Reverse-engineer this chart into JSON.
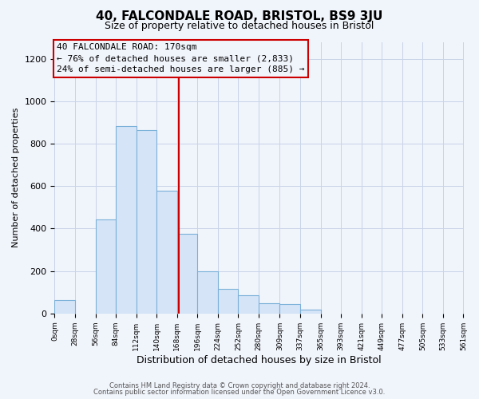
{
  "title": "40, FALCONDALE ROAD, BRISTOL, BS9 3JU",
  "subtitle": "Size of property relative to detached houses in Bristol",
  "xlabel": "Distribution of detached houses by size in Bristol",
  "ylabel": "Number of detached properties",
  "footer_line1": "Contains HM Land Registry data © Crown copyright and database right 2024.",
  "footer_line2": "Contains public sector information licensed under the Open Government Licence v3.0.",
  "bin_edges": [
    0,
    28,
    56,
    84,
    112,
    140,
    168,
    196,
    224,
    252,
    280,
    309,
    337,
    365,
    393,
    421,
    449,
    477,
    505,
    533,
    561
  ],
  "bin_labels": [
    "0sqm",
    "28sqm",
    "56sqm",
    "84sqm",
    "112sqm",
    "140sqm",
    "168sqm",
    "196sqm",
    "224sqm",
    "252sqm",
    "280sqm",
    "309sqm",
    "337sqm",
    "365sqm",
    "393sqm",
    "421sqm",
    "449sqm",
    "477sqm",
    "505sqm",
    "533sqm",
    "561sqm"
  ],
  "counts": [
    65,
    0,
    445,
    885,
    865,
    580,
    375,
    200,
    115,
    85,
    50,
    45,
    18,
    0,
    0,
    0,
    0,
    0,
    0,
    0
  ],
  "vline_x": 170,
  "bar_facecolor": "#d6e4f7",
  "bar_edgecolor": "#7ab0d8",
  "vline_color": "#cc0000",
  "annotation_line1": "40 FALCONDALE ROAD: 170sqm",
  "annotation_line2": "← 76% of detached houses are smaller (2,833)",
  "annotation_line3": "24% of semi-detached houses are larger (885) →",
  "annotation_box_edgecolor": "#cc0000",
  "ylim": [
    0,
    1280
  ],
  "yticks": [
    0,
    200,
    400,
    600,
    800,
    1000,
    1200
  ],
  "bg_color": "#f0f4fb",
  "grid_color": "#c8d4e8",
  "title_fontsize": 11,
  "subtitle_fontsize": 9,
  "xlabel_fontsize": 9,
  "ylabel_fontsize": 8,
  "xtick_fontsize": 6.5,
  "ytick_fontsize": 8,
  "annot_fontsize": 8
}
